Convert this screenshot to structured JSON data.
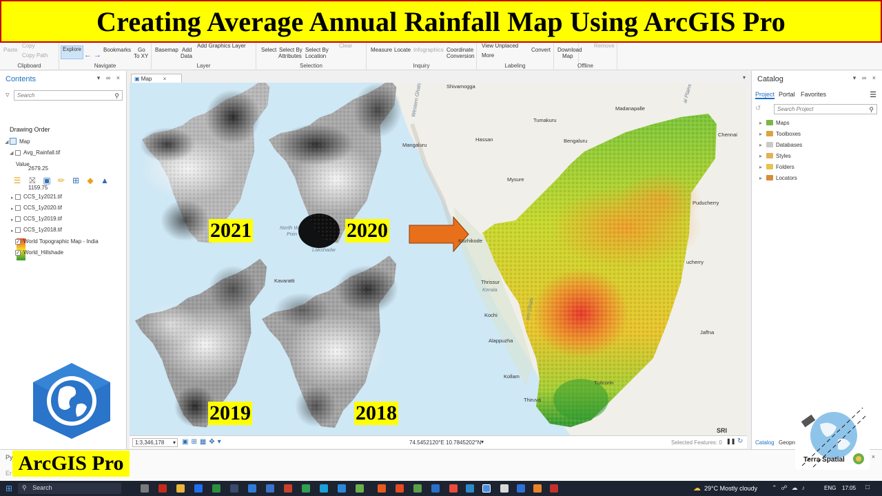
{
  "banner": {
    "title": "Creating Average Annual Rainfall Map Using ArcGIS Pro"
  },
  "ribbon": {
    "clipboard": {
      "paste": "Paste",
      "copy": "Copy",
      "copy_path": "Copy Path",
      "label": "Clipboard"
    },
    "navigate": {
      "explore": "Explore",
      "bookmarks": "Bookmarks",
      "go_to": "Go",
      "go_to_2": "To XY",
      "label": "Navigate"
    },
    "layer": {
      "basemap": "Basemap",
      "add_data": "Add",
      "add_data_2": "Data",
      "add_graphics": "Add Graphics Layer",
      "label": "Layer"
    },
    "selection": {
      "select": "Select",
      "select_by_attr": "Select By",
      "select_by_attr_2": "Attributes",
      "select_by_loc": "Select By",
      "select_by_loc_2": "Location",
      "clear": "Clear",
      "label": "Selection"
    },
    "inquiry": {
      "measure": "Measure",
      "locate": "Locate",
      "infographics": "Infographics",
      "coord": "Coordinate",
      "coord_2": "Conversion",
      "label": "Inquiry"
    },
    "labeling": {
      "view_unplaced": "View Unplaced",
      "more": "More",
      "label": "Labeling"
    },
    "convert": {
      "convert": "Convert"
    },
    "offline": {
      "download": "Download",
      "download_2": "Map",
      "remove": "Remove",
      "label": "Offline"
    }
  },
  "contents": {
    "title": "Contents",
    "search_placeholder": "Search",
    "drawing_order": "Drawing Order",
    "map_label": "Map",
    "layers": [
      {
        "name": "Avg_Rainfall.tif",
        "checked": false
      },
      {
        "name": "CCS_1y2021.tif",
        "checked": false
      },
      {
        "name": "CCS_1y2020.tif",
        "checked": false
      },
      {
        "name": "CCS_1y2019.tif",
        "checked": false
      },
      {
        "name": "CCS_1y2018.tif",
        "checked": false
      },
      {
        "name": "World Topographic Map - India",
        "checked": true
      },
      {
        "name": "World_Hillshade",
        "checked": true
      }
    ],
    "legend": {
      "title": "Value",
      "high": "2679.25",
      "low": "1159.75"
    }
  },
  "map": {
    "tab_label": "Map",
    "scale": "1:3,346,178",
    "coords": "74.5452120°E 10.7845202°N",
    "selected_features": "Selected Features: 0",
    "esri": "SRI",
    "place_labels": [
      "Shivamogga",
      "Madanapalle",
      "Tumakuru",
      "Hassan",
      "Bengaluru",
      "Chennai",
      "Mangaluru",
      "Mysure",
      "Puducherry",
      "Kozhikode",
      "Thrissur",
      "Kerala",
      "Kochi",
      "Alappuzha",
      "Kollam",
      "Tuticorin",
      "Jaffna",
      "Thiruva",
      "Western Ghats",
      "Kavaratti",
      "Lakshadw",
      "North W",
      "Poin",
      "al Plains",
      "ern Ghats",
      "ucherry"
    ],
    "year_labels": [
      "2021",
      "2020",
      "2019",
      "2018"
    ]
  },
  "catalog": {
    "title": "Catalog",
    "tabs": [
      "Project",
      "Portal",
      "Favorites"
    ],
    "search_placeholder": "Search Project",
    "items": [
      "Maps",
      "Toolboxes",
      "Databases",
      "Styles",
      "Folders",
      "Locators"
    ],
    "bottom_tabs": [
      "Catalog",
      "Geopro"
    ]
  },
  "python": {
    "prompt": "Py",
    "line2": "Er"
  },
  "taskbar": {
    "search": "Search",
    "weather": "29°C  Mostly cloudy",
    "lang": "ENG",
    "time": "17:05"
  },
  "overlays": {
    "arcgis_label": "ArcGIS Pro",
    "terra_spatial": "Terra Spatial"
  },
  "colors": {
    "banner_bg": "#ffff00",
    "banner_border": "#c00000",
    "accent": "#1a6fc4",
    "arrow": "#e8701a"
  }
}
